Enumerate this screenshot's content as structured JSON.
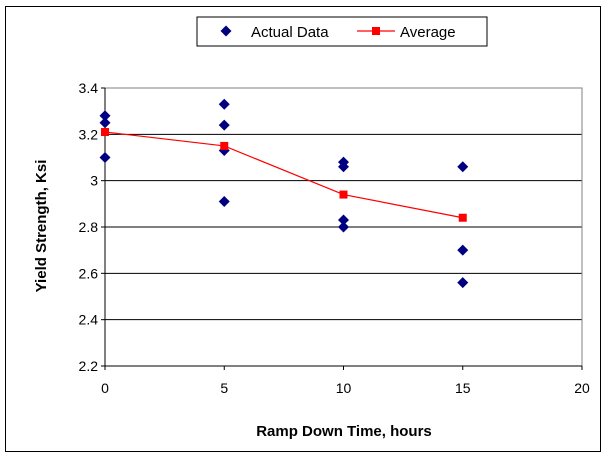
{
  "chart_data": {
    "type": "scatter",
    "title": "",
    "xlabel": "Ramp Down Time, hours",
    "ylabel": "Yield Strength, Ksi",
    "xlim": [
      0,
      20
    ],
    "ylim": [
      2.2,
      3.4
    ],
    "xticks": [
      0,
      5,
      10,
      15,
      20
    ],
    "yticks": [
      2.2,
      2.4,
      2.6,
      2.8,
      3,
      3.2,
      3.4
    ],
    "xtick_labels": [
      "0",
      "5",
      "10",
      "15",
      "20"
    ],
    "ytick_labels": [
      "2.2",
      "2.4",
      "2.6",
      "2.8",
      "3",
      "3.2",
      "3.4"
    ],
    "grid": "horizontal",
    "legend_position": "top-center",
    "series": [
      {
        "name": "Actual Data",
        "kind": "scatter",
        "marker": "diamond",
        "color": "#000080",
        "points": [
          {
            "x": 0,
            "y": 3.28
          },
          {
            "x": 0,
            "y": 3.25
          },
          {
            "x": 0,
            "y": 3.1
          },
          {
            "x": 5,
            "y": 3.33
          },
          {
            "x": 5,
            "y": 3.24
          },
          {
            "x": 5,
            "y": 3.13
          },
          {
            "x": 5,
            "y": 2.91
          },
          {
            "x": 10,
            "y": 3.08
          },
          {
            "x": 10,
            "y": 3.06
          },
          {
            "x": 10,
            "y": 2.83
          },
          {
            "x": 10,
            "y": 2.8
          },
          {
            "x": 15,
            "y": 3.06
          },
          {
            "x": 15,
            "y": 2.7
          },
          {
            "x": 15,
            "y": 2.56
          }
        ]
      },
      {
        "name": "Average",
        "kind": "line",
        "marker": "square",
        "color": "#ff0000",
        "points": [
          {
            "x": 0,
            "y": 3.21
          },
          {
            "x": 5,
            "y": 3.15
          },
          {
            "x": 10,
            "y": 2.94
          },
          {
            "x": 15,
            "y": 2.84
          }
        ]
      }
    ]
  }
}
